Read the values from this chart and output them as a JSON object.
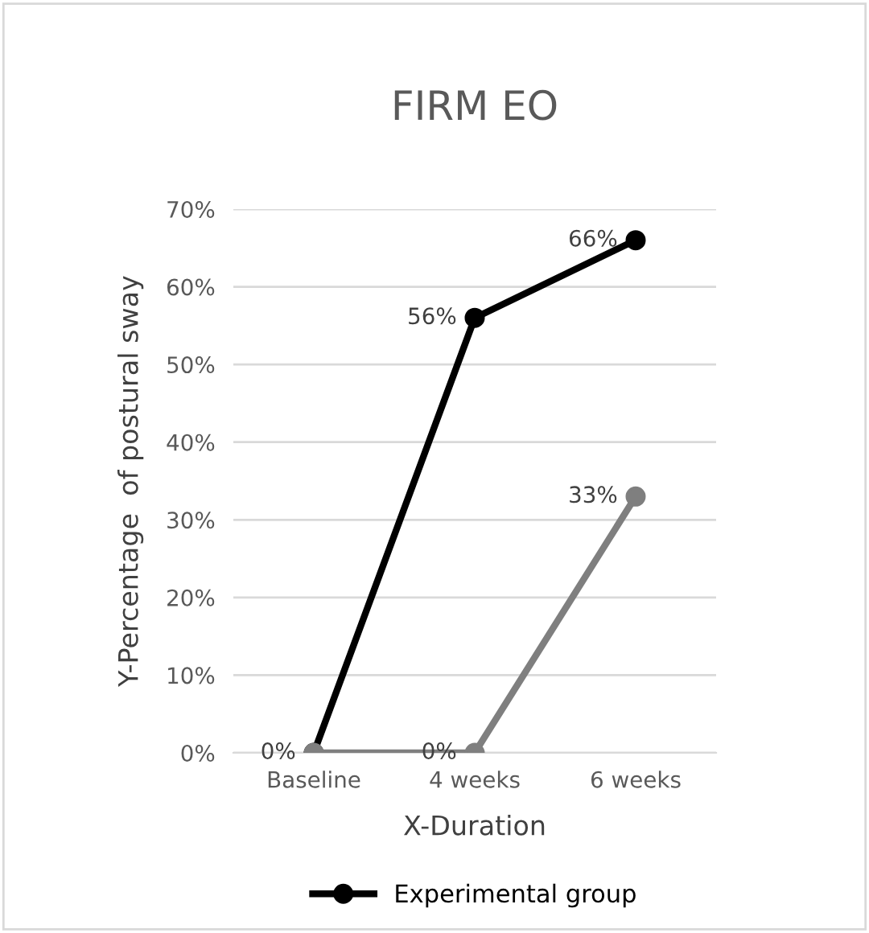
{
  "chart_data": {
    "type": "line",
    "title": "FIRM EO",
    "xlabel": "X-Duration",
    "ylabel": "Y-Percentage  of postural sway",
    "categories": [
      "Baseline",
      "4 weeks",
      "6 weeks"
    ],
    "series": [
      {
        "name": "Experimental group",
        "color": "#000000",
        "values": [
          0,
          56,
          66
        ],
        "value_labels": [
          "0%",
          "56%",
          "66%"
        ]
      },
      {
        "color": "#7f7f7f",
        "values": [
          0,
          0,
          33
        ],
        "value_labels": [
          null,
          "0%",
          "33%"
        ]
      }
    ],
    "ylim": [
      0,
      70
    ],
    "yticks": [
      {
        "value": 0,
        "label": "0%"
      },
      {
        "value": 10,
        "label": "10%"
      },
      {
        "value": 20,
        "label": "20%"
      },
      {
        "value": 30,
        "label": "30%"
      },
      {
        "value": 40,
        "label": "40%"
      },
      {
        "value": 50,
        "label": "50%"
      },
      {
        "value": 60,
        "label": "60%"
      },
      {
        "value": 70,
        "label": "70%"
      }
    ],
    "grid": "y",
    "legend": "bottom",
    "marker": "circle",
    "line_style": "solid"
  }
}
